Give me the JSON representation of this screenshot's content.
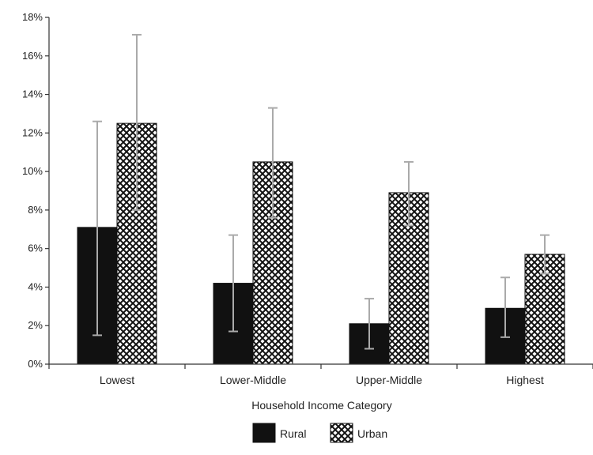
{
  "chart_data": {
    "type": "bar",
    "title": "",
    "xlabel": "Household Income Category",
    "ylabel": "",
    "categories": [
      "Lowest",
      "Lower-Middle",
      "Upper-Middle",
      "Highest"
    ],
    "ylim": [
      0,
      18
    ],
    "yticks": [
      "0%",
      "2%",
      "4%",
      "6%",
      "8%",
      "10%",
      "12%",
      "14%",
      "16%",
      "18%"
    ],
    "ytick_values": [
      0,
      2,
      4,
      6,
      8,
      10,
      12,
      14,
      16,
      18
    ],
    "series": [
      {
        "name": "Rural",
        "values": [
          7.1,
          4.2,
          2.1,
          2.9
        ],
        "err_low": [
          1.5,
          1.7,
          0.8,
          1.4
        ],
        "err_high": [
          12.6,
          6.7,
          3.4,
          4.5
        ],
        "fill": "#111111"
      },
      {
        "name": "Urban",
        "values": [
          12.5,
          10.5,
          8.9,
          5.7
        ],
        "err_low": [
          8.0,
          7.6,
          7.2,
          4.7
        ],
        "err_high": [
          17.1,
          13.3,
          10.5,
          6.7
        ],
        "fill": "crosshatch"
      }
    ],
    "grid": false,
    "legend_position": "bottom-center",
    "error_bar_color": "#aaaaaa"
  }
}
